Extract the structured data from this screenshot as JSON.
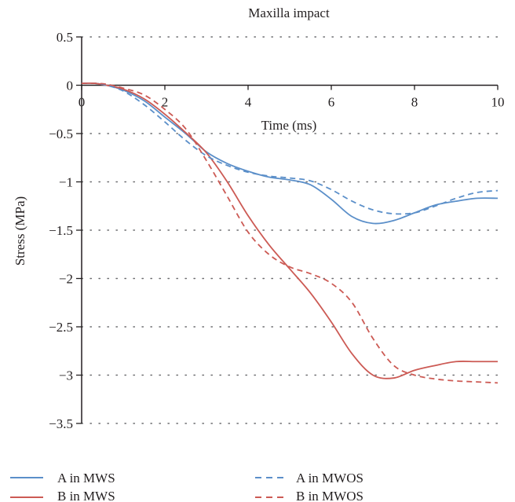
{
  "chart_data": {
    "type": "line",
    "title": "Maxilla impact",
    "xlabel": "Time (ms)",
    "ylabel": "Stress (MPa)",
    "xlim": [
      0,
      10
    ],
    "ylim": [
      -3.5,
      0.5
    ],
    "x_ticks": [
      0,
      2,
      4,
      6,
      8,
      10
    ],
    "x_tick_labels": [
      "0",
      "2",
      "4",
      "6",
      "8",
      "10"
    ],
    "y_ticks": [
      0.5,
      0,
      -0.5,
      -1,
      -1.5,
      -2,
      -2.5,
      -3,
      -3.5
    ],
    "y_tick_labels": [
      "0.5",
      "0",
      "−0.5",
      "−1",
      "−1.5",
      "−2",
      "−2.5",
      "−3",
      "−3.5"
    ],
    "grid": "horizontal dotted",
    "legend_position": "bottom",
    "colors": {
      "A": "#5b8fc9",
      "B": "#cc5a54",
      "axis": "#231f20",
      "grid": "#6d6e71"
    },
    "series": [
      {
        "name": "A in MWS",
        "line_style": "solid",
        "color": "#5b8fc9",
        "x": [
          0,
          0.3,
          0.6,
          1.0,
          1.5,
          2.0,
          2.5,
          3.0,
          3.5,
          4.0,
          4.5,
          5.0,
          5.5,
          6.0,
          6.5,
          7.0,
          7.5,
          8.0,
          8.5,
          9.0,
          9.5,
          10.0
        ],
        "y": [
          0.02,
          0.02,
          0.0,
          -0.05,
          -0.16,
          -0.33,
          -0.5,
          -0.69,
          -0.81,
          -0.89,
          -0.95,
          -0.98,
          -1.03,
          -1.18,
          -1.36,
          -1.43,
          -1.4,
          -1.32,
          -1.24,
          -1.2,
          -1.17,
          -1.17
        ]
      },
      {
        "name": "B in MWS",
        "line_style": "solid",
        "color": "#cc5a54",
        "x": [
          0,
          0.3,
          0.6,
          1.0,
          1.5,
          2.0,
          2.5,
          3.0,
          3.5,
          4.0,
          4.5,
          5.0,
          5.5,
          6.0,
          6.5,
          7.0,
          7.5,
          8.0,
          8.5,
          9.0,
          9.5,
          10.0
        ],
        "y": [
          0.02,
          0.02,
          0.0,
          -0.04,
          -0.14,
          -0.3,
          -0.49,
          -0.7,
          -1.0,
          -1.35,
          -1.65,
          -1.9,
          -2.15,
          -2.45,
          -2.78,
          -3.0,
          -3.03,
          -2.95,
          -2.9,
          -2.86,
          -2.86,
          -2.86
        ]
      },
      {
        "name": "A in MWOS",
        "line_style": "dashed",
        "color": "#5b8fc9",
        "x": [
          0,
          0.3,
          0.6,
          1.0,
          1.5,
          2.0,
          2.5,
          3.0,
          3.5,
          4.0,
          4.5,
          5.0,
          5.5,
          6.0,
          6.5,
          7.0,
          7.5,
          8.0,
          8.5,
          9.0,
          9.5,
          10.0
        ],
        "y": [
          0.02,
          0.02,
          0.0,
          -0.06,
          -0.2,
          -0.38,
          -0.57,
          -0.73,
          -0.83,
          -0.9,
          -0.94,
          -0.96,
          -0.99,
          -1.08,
          -1.2,
          -1.29,
          -1.33,
          -1.32,
          -1.25,
          -1.17,
          -1.11,
          -1.09
        ]
      },
      {
        "name": "B in MWOS",
        "line_style": "dashed",
        "color": "#cc5a54",
        "x": [
          0,
          0.3,
          0.6,
          1.0,
          1.5,
          2.0,
          2.5,
          3.0,
          3.5,
          4.0,
          4.5,
          5.0,
          5.5,
          6.0,
          6.5,
          7.0,
          7.5,
          8.0,
          8.5,
          9.0,
          9.5,
          10.0
        ],
        "y": [
          0.02,
          0.02,
          0.01,
          -0.03,
          -0.1,
          -0.25,
          -0.45,
          -0.78,
          -1.15,
          -1.52,
          -1.75,
          -1.88,
          -1.95,
          -2.05,
          -2.25,
          -2.62,
          -2.9,
          -3.0,
          -3.04,
          -3.06,
          -3.07,
          -3.08
        ]
      }
    ]
  }
}
